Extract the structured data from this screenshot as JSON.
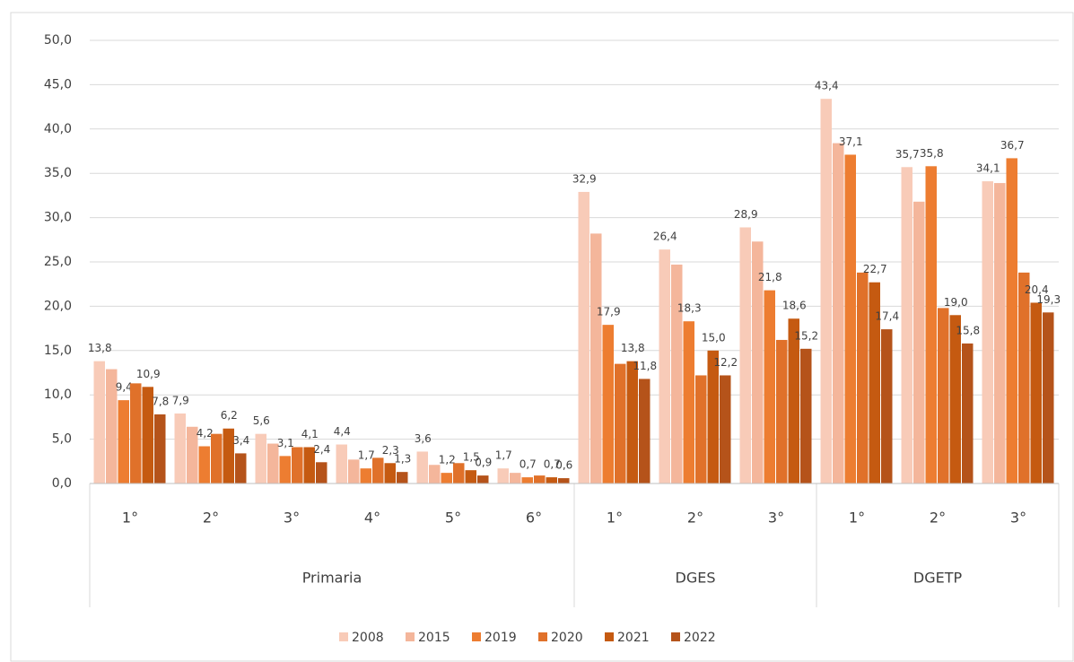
{
  "chart_data": {
    "type": "bar",
    "groups": [
      {
        "name": "Primaria",
        "categories": [
          "1°",
          "2°",
          "3°",
          "4°",
          "5°",
          "6°"
        ]
      },
      {
        "name": "DGES",
        "categories": [
          "1°",
          "2°",
          "3°"
        ]
      },
      {
        "name": "DGETP",
        "categories": [
          "1°",
          "2°",
          "3°"
        ]
      }
    ],
    "series": [
      {
        "name": "2008",
        "color": "#f8cbb8",
        "values": [
          13.8,
          7.9,
          5.6,
          4.4,
          3.6,
          1.7,
          32.9,
          26.4,
          28.9,
          43.4,
          35.7,
          34.1
        ],
        "value_labels": [
          "13,8",
          "7,9",
          "5,6",
          "4,4",
          "3,6",
          "1,7",
          "32,9",
          "26,4",
          "28,9",
          "43,4",
          "35,7",
          "34,1"
        ]
      },
      {
        "name": "2015",
        "color": "#f4b69b",
        "values": [
          12.9,
          6.4,
          4.5,
          2.7,
          2.1,
          1.2,
          28.2,
          24.7,
          27.3,
          38.4,
          31.8,
          33.9
        ]
      },
      {
        "name": "2019",
        "color": "#ed7d31",
        "values": [
          9.4,
          4.2,
          3.1,
          1.7,
          1.2,
          0.7,
          17.9,
          18.3,
          21.8,
          37.1,
          35.8,
          36.7
        ],
        "value_labels": [
          "9,4",
          "4,2",
          "3,1",
          "1,7",
          "1,2",
          "0,7",
          "17,9",
          "18,3",
          "21,8",
          "37,1",
          "35,8",
          "36,7"
        ]
      },
      {
        "name": "2020",
        "color": "#e0712a",
        "values": [
          11.3,
          5.6,
          4.1,
          2.9,
          2.3,
          0.9,
          13.5,
          12.2,
          16.2,
          23.8,
          19.8,
          23.8
        ]
      },
      {
        "name": "2021",
        "color": "#c55a11",
        "values": [
          10.9,
          6.2,
          4.1,
          2.3,
          1.5,
          0.7,
          13.8,
          15.0,
          18.6,
          22.7,
          19.0,
          20.4
        ],
        "value_labels": [
          "10,9",
          "6,2",
          "4,1",
          "2,3",
          "1,5",
          "0,7",
          "13,8",
          "15,0",
          "18,6",
          "22,7",
          "19,0",
          "20,4"
        ]
      },
      {
        "name": "2022",
        "color": "#b5531a",
        "values": [
          7.8,
          3.4,
          2.4,
          1.3,
          0.9,
          0.6,
          11.8,
          12.2,
          15.2,
          17.4,
          15.8,
          19.3
        ],
        "value_labels": [
          "7,8",
          "3,4",
          "2,4",
          "1,3",
          "0,9",
          "0,6",
          "11,8",
          "12,2",
          "15,2",
          "17,4",
          "15,8",
          "19,3"
        ]
      }
    ],
    "ylim": [
      0,
      50
    ],
    "yticks": [
      {
        "value": 0,
        "label": "0,0"
      },
      {
        "value": 5,
        "label": "5,0"
      },
      {
        "value": 10,
        "label": "10,0"
      },
      {
        "value": 15,
        "label": "15,0"
      },
      {
        "value": 20,
        "label": "20,0"
      },
      {
        "value": 25,
        "label": "25,0"
      },
      {
        "value": 30,
        "label": "30,0"
      },
      {
        "value": 35,
        "label": "35,0"
      },
      {
        "value": 40,
        "label": "40,0"
      },
      {
        "value": 45,
        "label": "45,0"
      },
      {
        "value": 50,
        "label": "50,0"
      }
    ],
    "grid": true,
    "legend": "bottom"
  }
}
